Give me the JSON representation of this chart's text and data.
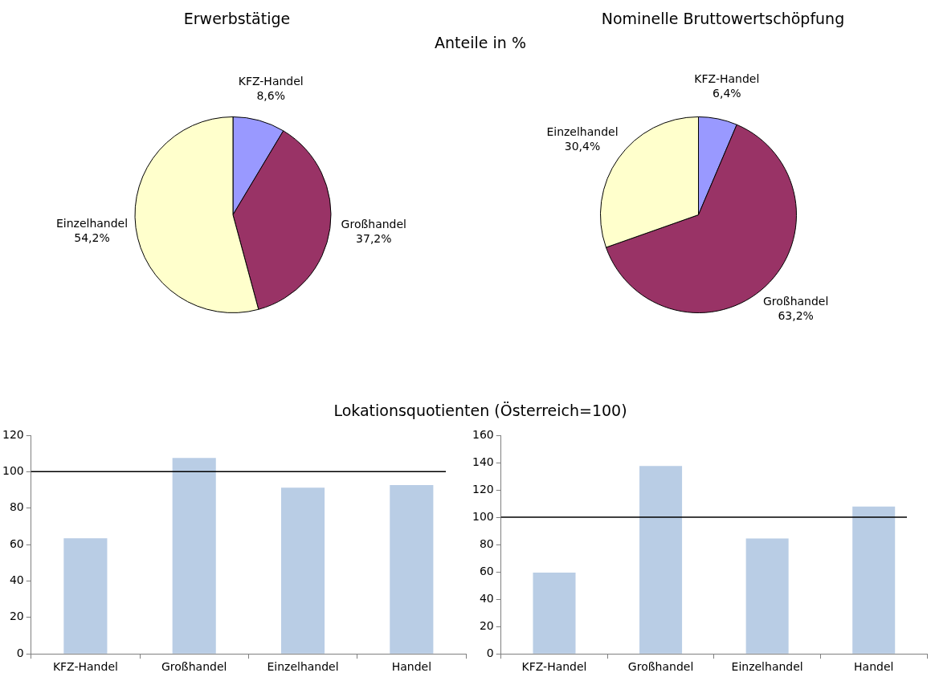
{
  "chart_data": [
    {
      "type": "pie",
      "title": "Erwerbstätige",
      "subtitle": "Anteile in %",
      "categories": [
        "KFZ-Handel",
        "Großhandel",
        "Einzelhandel"
      ],
      "values": [
        8.6,
        37.2,
        54.2
      ],
      "value_labels": [
        "8,6%",
        "37,2%",
        "54,2%"
      ],
      "colors": [
        "#9999ff",
        "#993366",
        "#ffffcc"
      ]
    },
    {
      "type": "pie",
      "title": "Nominelle Bruttowertschöpfung",
      "categories": [
        "KFZ-Handel",
        "Großhandel",
        "Einzelhandel"
      ],
      "values": [
        6.4,
        63.2,
        30.4
      ],
      "value_labels": [
        "6,4%",
        "63,2%",
        "30,4%"
      ],
      "colors": [
        "#9999ff",
        "#993366",
        "#ffffcc"
      ]
    },
    {
      "type": "bar",
      "title": "Lokationsquotienten (Österreich=100)",
      "categories": [
        "KFZ-Handel",
        "Großhandel",
        "Einzelhandel",
        "Handel"
      ],
      "values": [
        63.5,
        107.5,
        91.2,
        92.7
      ],
      "color": "#b9cde5",
      "ylim": [
        0,
        120
      ],
      "yticks": [
        0,
        20,
        40,
        60,
        80,
        100,
        120
      ],
      "ref_lines": [
        {
          "axis": "y",
          "value": 100,
          "color": "#000000"
        }
      ]
    },
    {
      "type": "bar",
      "categories": [
        "KFZ-Handel",
        "Großhandel",
        "Einzelhandel",
        "Handel"
      ],
      "values": [
        59.5,
        137.5,
        84.4,
        107.9
      ],
      "color": "#b9cde5",
      "ylim": [
        0,
        160
      ],
      "yticks": [
        0,
        20,
        40,
        60,
        80,
        100,
        120,
        140,
        160
      ],
      "ref_lines": [
        {
          "axis": "y",
          "value": 100,
          "color": "#000000"
        }
      ]
    }
  ]
}
